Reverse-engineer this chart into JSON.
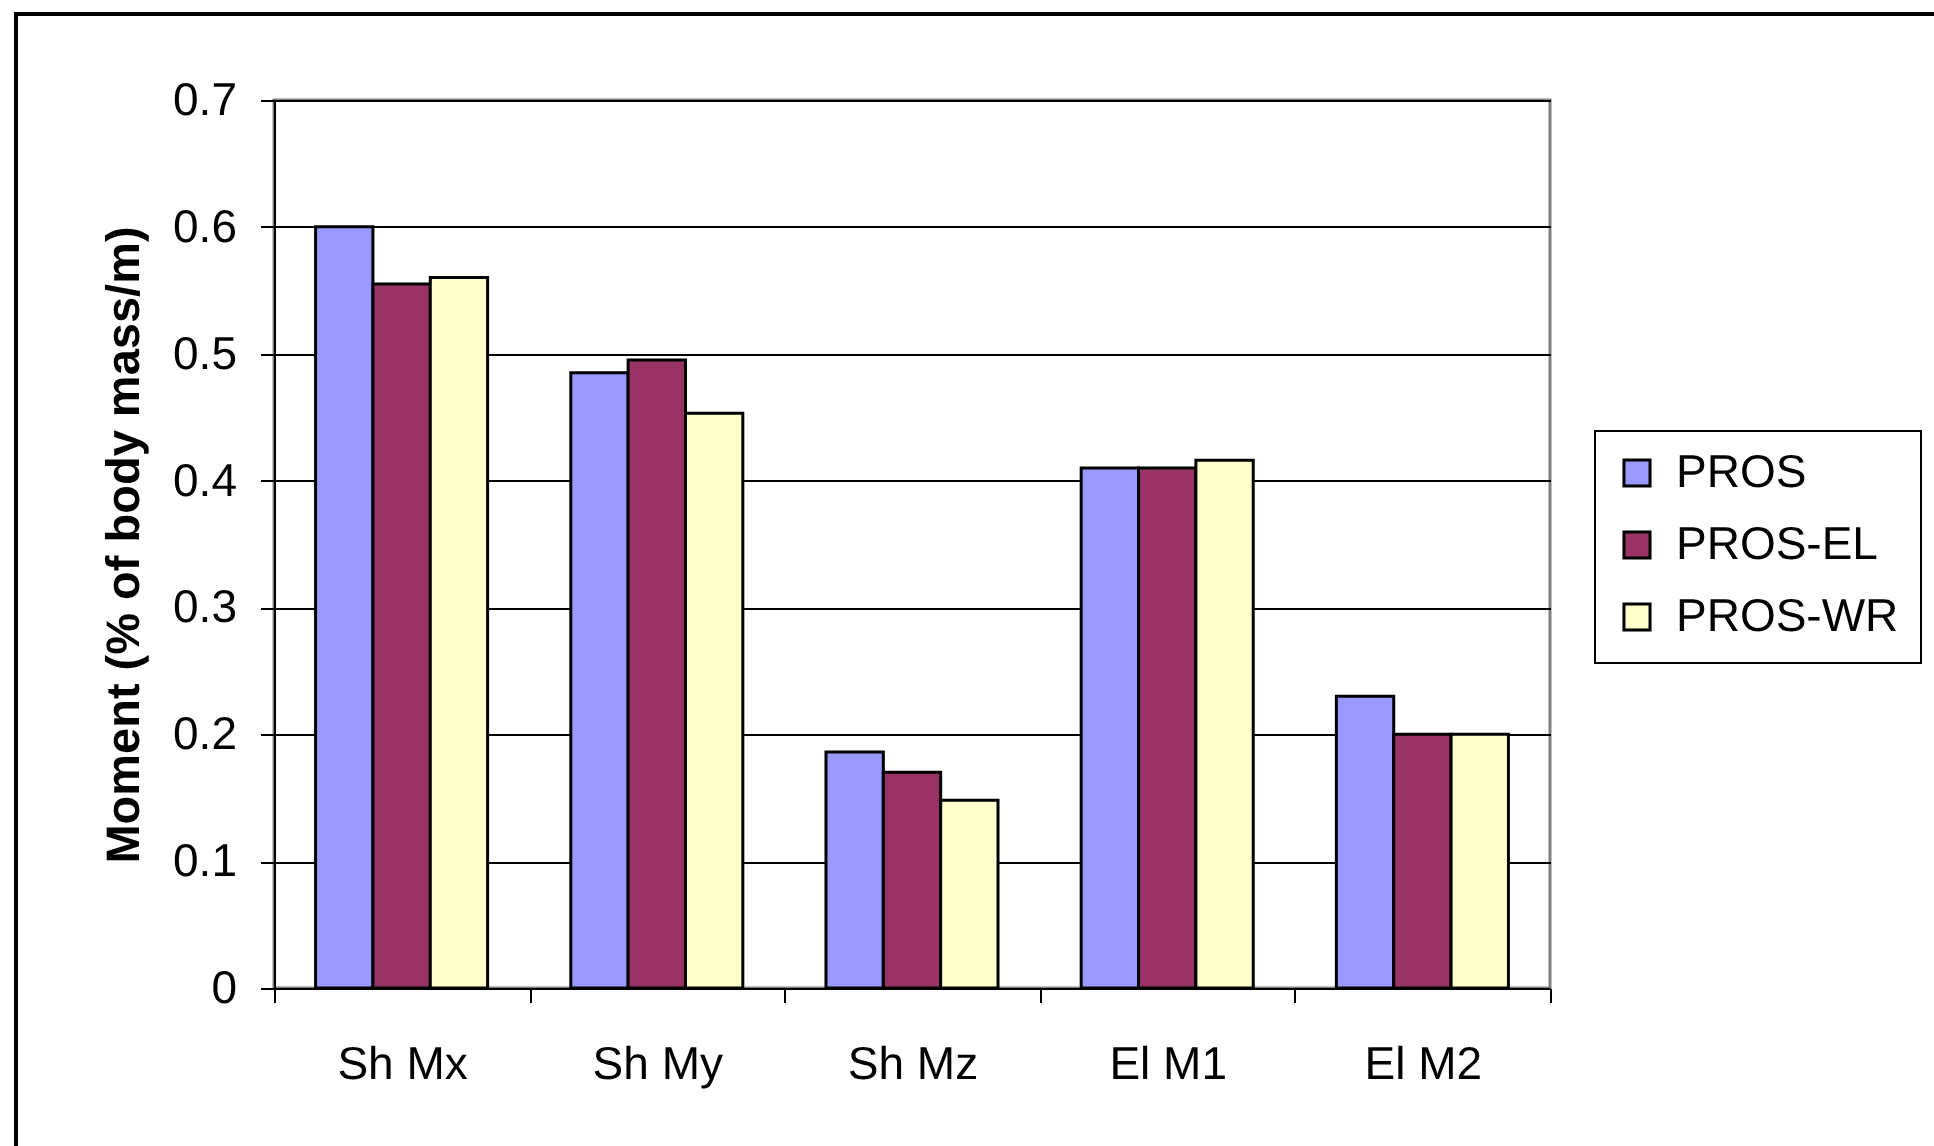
{
  "chart_data": {
    "type": "bar",
    "ylabel": "Moment (% of body mass/m)",
    "categories": [
      "Sh Mx",
      "Sh My",
      "Sh Mz",
      "El M1",
      "El M2"
    ],
    "series": [
      {
        "name": "PROS",
        "color": "#9999ff",
        "values": [
          0.6,
          0.485,
          0.186,
          0.41,
          0.23
        ]
      },
      {
        "name": "PROS-EL",
        "color": "#993366",
        "values": [
          0.555,
          0.495,
          0.17,
          0.41,
          0.2
        ]
      },
      {
        "name": "PROS-WR",
        "color": "#ffffcc",
        "values": [
          0.56,
          0.453,
          0.148,
          0.416,
          0.2
        ]
      }
    ],
    "ylim": [
      0,
      0.7
    ],
    "yticks": [
      0,
      0.1,
      0.2,
      0.3,
      0.4,
      0.5,
      0.6,
      0.7
    ],
    "grid": "y",
    "legend": "right"
  }
}
